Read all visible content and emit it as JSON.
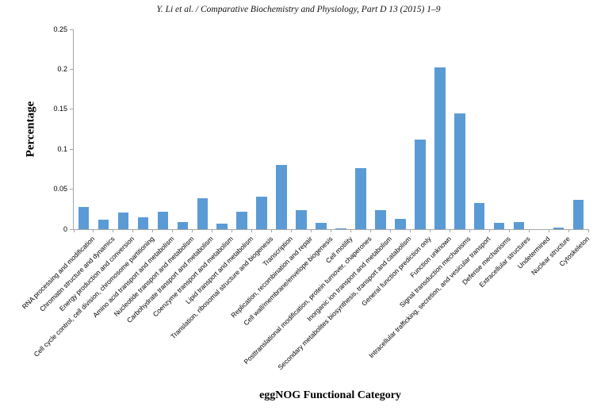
{
  "header": {
    "text": "Y. Li et al. / Comparative Biochemistry and Physiology, Part D 13 (2015) 1–9"
  },
  "chart_data": {
    "type": "bar",
    "title": "",
    "xlabel": "eggNOG Functional Category",
    "ylabel": "Percentage",
    "ylim": [
      0,
      0.25
    ],
    "yticks": [
      0,
      0.05,
      0.1,
      0.15,
      0.2,
      0.25
    ],
    "ytick_labels": [
      "0",
      "0.05",
      "0.1",
      "0.15",
      "0.2",
      "0.25"
    ],
    "grid": false,
    "legend_position": "none",
    "bar_color": "#5b9bd5",
    "axis_color": "#a6a6a6",
    "categories": [
      "RNA processing and modification",
      "Chromatin structure and dynamics",
      "Energy production and conversion",
      "Cell cycle control, cell division, chromosome partitioning",
      "Amino acid transport and metabolism",
      "Nucleotide transport and metabolism",
      "Carbohydrate transport and metabolism",
      "Coenzyme transport and metabolism",
      "Lipid transport and metabolism",
      "Translation, ribosomal structure and biogenesis",
      "Transcription",
      "Replication, recombination and repair",
      "Cell wall/membrane/envelope biogenesis",
      "Cell motility",
      "Posttranslational modification, protein turnover, chaperones",
      "Inorganic ion transport and metabolism",
      "Secondary metabolites biosynthesis, transport and catabolism",
      "General function prediction only",
      "Function unknown",
      "Signal transduction mechanisms",
      "Intracellular trafficking, secretion, and vesicular transport",
      "Defense mechanisms",
      "Extracellular structures",
      "Undetermined",
      "Nuclear structure",
      "Cytoskeleton"
    ],
    "values": [
      0.028,
      0.012,
      0.021,
      0.015,
      0.022,
      0.009,
      0.039,
      0.007,
      0.022,
      0.041,
      0.08,
      0.024,
      0.008,
      0.001,
      0.076,
      0.024,
      0.013,
      0.112,
      0.202,
      0.145,
      0.033,
      0.008,
      0.009,
      0.0,
      0.002,
      0.037
    ]
  }
}
